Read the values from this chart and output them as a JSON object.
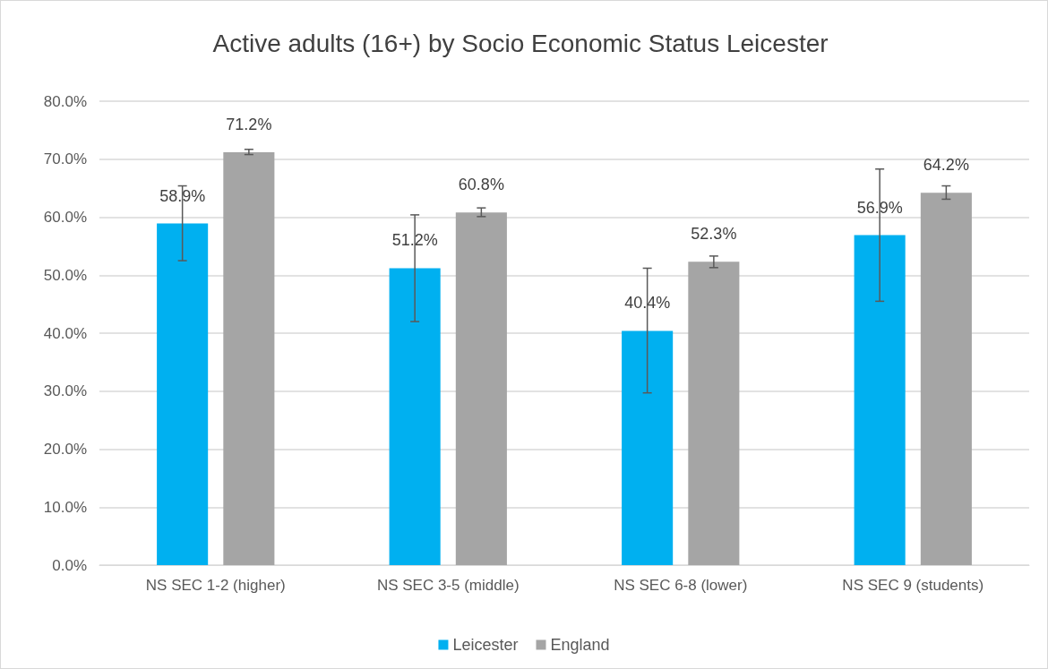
{
  "chart_data": {
    "type": "bar",
    "title": "Active adults (16+) by Socio Economic Status Leicester",
    "categories": [
      "NS SEC 1-2 (higher)",
      "NS SEC 3-5 (middle)",
      "NS SEC 6-8 (lower)",
      "NS SEC 9 (students)"
    ],
    "series": [
      {
        "name": "Leicester",
        "color": "#00b0f0",
        "values": [
          58.9,
          51.2,
          40.4,
          56.9
        ],
        "value_labels": [
          "58.9%",
          "51.2%",
          "40.4%",
          "56.9%"
        ],
        "errors": [
          [
            52.5,
            65.4
          ],
          [
            42.0,
            60.4
          ],
          [
            29.7,
            51.2
          ],
          [
            45.5,
            68.3
          ]
        ]
      },
      {
        "name": "England",
        "color": "#a5a5a5",
        "values": [
          71.2,
          60.8,
          52.3,
          64.2
        ],
        "value_labels": [
          "71.2%",
          "60.8%",
          "52.3%",
          "64.2%"
        ],
        "errors": [
          [
            70.8,
            71.7
          ],
          [
            60.1,
            61.6
          ],
          [
            51.3,
            53.3
          ],
          [
            63.1,
            65.4
          ]
        ]
      }
    ],
    "ylim": [
      0,
      80
    ],
    "yticks": [
      {
        "value": 0,
        "label": "0.0%"
      },
      {
        "value": 10,
        "label": "10.0%"
      },
      {
        "value": 20,
        "label": "20.0%"
      },
      {
        "value": 30,
        "label": "30.0%"
      },
      {
        "value": 40,
        "label": "40.0%"
      },
      {
        "value": 50,
        "label": "50.0%"
      },
      {
        "value": 60,
        "label": "60.0%"
      },
      {
        "value": 70,
        "label": "70.0%"
      },
      {
        "value": 80,
        "label": "80.0%"
      }
    ],
    "grid": "y",
    "legend": "bottom"
  }
}
